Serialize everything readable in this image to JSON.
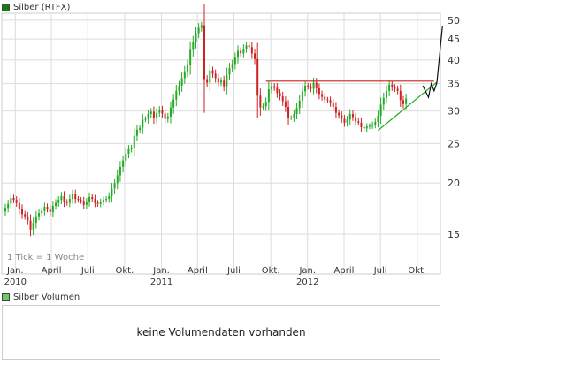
{
  "legend_price": {
    "label": "Silber (RTFX)",
    "color": "#1a7a1a"
  },
  "legend_volume": {
    "label": "Silber Volumen",
    "color": "#66cc66"
  },
  "tick_note": "1 Tick = 1 Woche",
  "volume_message": "keine Volumendaten vorhanden",
  "chart_data": {
    "type": "candlestick",
    "title": "Silber (RTFX)",
    "scale": "log",
    "ylim": [
      12,
      52
    ],
    "y_ticks": [
      15,
      20,
      25,
      30,
      35,
      40,
      45,
      50
    ],
    "x_range": [
      "2009-12-07",
      "2012-11-19"
    ],
    "x_ticks": [
      {
        "label": "Jan.",
        "date": "2010-01-01",
        "year": "2010"
      },
      {
        "label": "April",
        "date": "2010-04-01"
      },
      {
        "label": "Juli",
        "date": "2010-07-01"
      },
      {
        "label": "Okt.",
        "date": "2010-10-01"
      },
      {
        "label": "Jan.",
        "date": "2011-01-01",
        "year": "2011"
      },
      {
        "label": "April",
        "date": "2011-04-01"
      },
      {
        "label": "Juli",
        "date": "2011-07-01"
      },
      {
        "label": "Okt.",
        "date": "2011-10-01"
      },
      {
        "label": "Jan.",
        "date": "2012-01-01",
        "year": "2012"
      },
      {
        "label": "April",
        "date": "2012-04-01"
      },
      {
        "label": "Juli",
        "date": "2012-07-01"
      },
      {
        "label": "Okt.",
        "date": "2012-10-01"
      }
    ],
    "grid": true,
    "up_color": "#22aa22",
    "down_color": "#cc2222",
    "series": [
      {
        "name": "Silber (RTFX)",
        "weekly_close": [
          17.4,
          17.8,
          18.4,
          18.2,
          17.9,
          17.3,
          16.8,
          16.6,
          16.2,
          15.4,
          16.0,
          16.6,
          16.9,
          17.1,
          17.5,
          17.3,
          17.0,
          17.6,
          17.9,
          18.2,
          18.6,
          18.0,
          17.9,
          18.3,
          18.8,
          18.3,
          18.2,
          18.1,
          17.7,
          18.0,
          18.5,
          18.3,
          17.9,
          17.8,
          18.0,
          18.2,
          18.3,
          18.6,
          19.4,
          20.0,
          20.9,
          21.9,
          22.7,
          23.6,
          24.2,
          24.4,
          26.1,
          27.0,
          27.3,
          28.6,
          28.7,
          29.5,
          29.9,
          28.8,
          29.7,
          30.2,
          29.6,
          28.7,
          29.1,
          30.6,
          32.0,
          33.6,
          34.6,
          36.1,
          37.5,
          38.9,
          42.3,
          44.3,
          46.5,
          47.9,
          48.6,
          35.9,
          35.2,
          37.7,
          37.0,
          36.1,
          35.2,
          35.6,
          34.5,
          36.8,
          38.2,
          39.1,
          40.5,
          42.1,
          41.5,
          42.6,
          43.4,
          43.0,
          41.5,
          40.2,
          32.7,
          30.6,
          30.8,
          31.6,
          33.9,
          34.5,
          34.2,
          33.2,
          32.6,
          31.7,
          30.7,
          28.9,
          28.9,
          29.5,
          30.5,
          31.8,
          33.5,
          34.6,
          34.4,
          34.0,
          35.2,
          34.1,
          33.0,
          32.5,
          32.0,
          31.9,
          31.4,
          30.7,
          29.7,
          29.3,
          28.7,
          28.1,
          28.6,
          29.5,
          29.0,
          28.3,
          28.1,
          27.4,
          27.2,
          27.5,
          27.6,
          27.8,
          28.2,
          29.2,
          31.1,
          32.3,
          33.6,
          34.8,
          34.3,
          34.0,
          33.6,
          31.9,
          31.2,
          32.2
        ]
      }
    ],
    "overlays": [
      {
        "name": "resistance",
        "color": "#cc2222",
        "points": [
          [
            "2011-09-19",
            35.5
          ],
          [
            "2012-11-12",
            35.5
          ]
        ]
      },
      {
        "name": "support-trend",
        "color": "#22aa22",
        "points": [
          [
            "2012-06-25",
            26.9
          ],
          [
            "2012-11-19",
            35.3
          ]
        ]
      },
      {
        "name": "projection",
        "color": "#111111",
        "points": [
          [
            "2012-10-15",
            34.6
          ],
          [
            "2012-10-29",
            32.4
          ],
          [
            "2012-11-05",
            35.0
          ],
          [
            "2012-11-12",
            33.6
          ],
          [
            "2012-11-19",
            35.2
          ],
          [
            "2012-12-03",
            48.5
          ]
        ]
      }
    ]
  }
}
